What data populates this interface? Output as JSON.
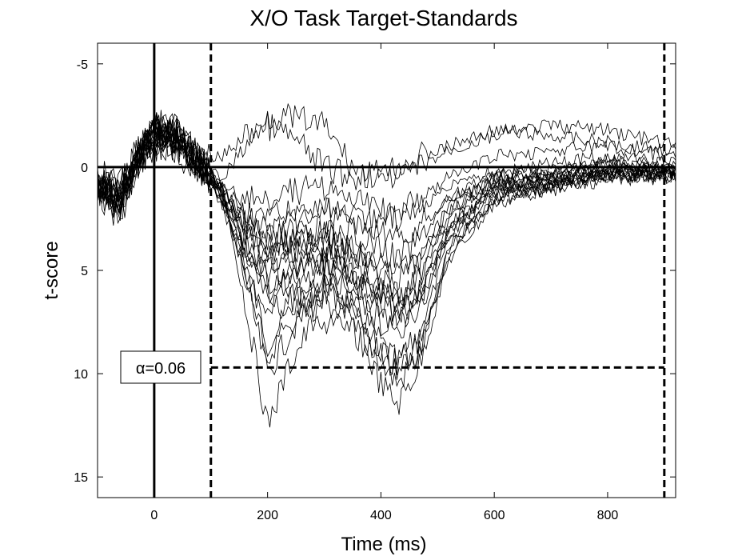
{
  "chart_data": {
    "type": "line",
    "title": "X/O Task Target-Standards",
    "xlabel": "Time (ms)",
    "ylabel": "t-score",
    "xlim": [
      -100,
      920
    ],
    "ylim": [
      -6,
      16
    ],
    "y_reversed": true,
    "xticks": [
      0,
      200,
      400,
      600,
      800
    ],
    "yticks": [
      -5,
      0,
      5,
      10,
      15
    ],
    "xtick_labels": [
      "0",
      "200",
      "400",
      "600",
      "800"
    ],
    "ytick_labels": [
      "-5",
      "0",
      "5",
      "10",
      "15"
    ],
    "grid": false,
    "legend": "none",
    "line_color": "#000000",
    "reference_lines": [
      {
        "orientation": "horizontal",
        "value": 0,
        "style": "solid"
      },
      {
        "orientation": "vertical",
        "value": 0,
        "style": "solid"
      },
      {
        "orientation": "vertical",
        "value": 100,
        "style": "dashed"
      },
      {
        "orientation": "vertical",
        "value": 900,
        "style": "dashed"
      },
      {
        "orientation": "horizontal",
        "value": 9.7,
        "x_from": 100,
        "x_to": 900,
        "style": "dashed"
      }
    ],
    "annotation": {
      "text": "α=0.06",
      "x": -52,
      "y": 9.8
    },
    "series_profile": {
      "x": [
        -100,
        -60,
        -40,
        0,
        40,
        90,
        120,
        160,
        200,
        240,
        300,
        350,
        400,
        430,
        470,
        520,
        600,
        700,
        800,
        920
      ],
      "baseline": [
        1,
        1,
        0,
        -1.5,
        -1.2,
        0,
        1.3,
        3.5,
        5,
        4.6,
        4.5,
        5.2,
        6.2,
        6.5,
        5.5,
        2.5,
        1,
        0.8,
        0.3,
        0.3
      ]
    },
    "series": [
      {
        "values": [
          1.2,
          1.6,
          0.2,
          -1.8,
          -1.5,
          0.2,
          1.6,
          4.5,
          8.5,
          7.0,
          5.5,
          6.5,
          8.5,
          9.5,
          8.0,
          3.5,
          1.5,
          1.0,
          0.5,
          0.4
        ]
      },
      {
        "values": [
          0.8,
          2.5,
          0.5,
          -2.0,
          -1.8,
          0.0,
          1.2,
          5.5,
          10.0,
          8.0,
          6.0,
          7.0,
          9.5,
          10.5,
          9.0,
          4.0,
          1.5,
          0.8,
          0.4,
          0.2
        ]
      },
      {
        "values": [
          1.0,
          1.2,
          -0.2,
          -1.6,
          -1.0,
          0.3,
          1.0,
          6.5,
          12.5,
          9.5,
          6.5,
          7.5,
          10.5,
          11.5,
          9.5,
          4.5,
          1.8,
          1.0,
          0.2,
          0.5
        ]
      },
      {
        "values": [
          0.5,
          0.8,
          0.6,
          -1.4,
          -1.2,
          0.1,
          0.8,
          3.0,
          4.0,
          3.5,
          3.0,
          4.0,
          5.0,
          5.5,
          4.5,
          2.0,
          0.8,
          0.5,
          0.0,
          0.1
        ]
      },
      {
        "values": [
          1.4,
          1.8,
          0.0,
          -2.2,
          -1.6,
          0.4,
          1.5,
          2.5,
          3.0,
          2.8,
          2.0,
          3.0,
          4.0,
          4.5,
          3.5,
          1.5,
          0.5,
          0.3,
          -0.2,
          0.2
        ]
      },
      {
        "values": [
          0.6,
          1.0,
          0.4,
          -1.2,
          -0.8,
          -0.2,
          -0.5,
          -1.5,
          -2.0,
          -1.5,
          0.0,
          0.5,
          0.2,
          0.0,
          -0.5,
          -1.0,
          -1.8,
          -1.5,
          -1.2,
          -0.8
        ]
      },
      {
        "values": [
          1.5,
          1.3,
          -0.4,
          -1.8,
          -1.4,
          0.2,
          0.5,
          -1.0,
          -2.5,
          -2.4,
          -2.0,
          0.0,
          0.5,
          0.5,
          0.0,
          -0.8,
          -1.5,
          -2.0,
          -1.8,
          -1.0
        ]
      },
      {
        "values": [
          0.9,
          1.1,
          0.3,
          -1.7,
          -1.3,
          0.0,
          1.4,
          4.0,
          6.0,
          5.5,
          7.5,
          8.0,
          9.0,
          9.5,
          8.5,
          4.0,
          1.0,
          0.6,
          0.2,
          0.3
        ]
      },
      {
        "values": [
          1.1,
          1.9,
          0.1,
          -1.5,
          -1.1,
          0.3,
          1.8,
          5.0,
          7.0,
          6.5,
          5.0,
          5.5,
          6.5,
          7.0,
          6.0,
          3.0,
          1.2,
          0.9,
          0.5,
          0.4
        ]
      },
      {
        "values": [
          0.7,
          1.4,
          0.5,
          -2.1,
          -1.7,
          0.1,
          1.1,
          2.0,
          2.5,
          2.2,
          2.0,
          2.5,
          3.0,
          3.5,
          2.8,
          1.5,
          0.4,
          0.2,
          0.0,
          0.1
        ]
      },
      {
        "values": [
          1.3,
          2.2,
          0.0,
          -1.9,
          -1.4,
          0.2,
          1.3,
          3.5,
          5.5,
          5.0,
          4.0,
          3.0,
          2.5,
          2.0,
          1.5,
          0.5,
          -0.5,
          -0.8,
          -1.0,
          -0.5
        ]
      },
      {
        "values": [
          0.8,
          1.5,
          0.2,
          -1.3,
          -0.9,
          0.4,
          1.6,
          4.8,
          9.0,
          7.5,
          6.0,
          7.0,
          9.0,
          10.0,
          8.8,
          4.2,
          1.4,
          1.1,
          0.6,
          0.5
        ]
      },
      {
        "values": [
          1.0,
          1.7,
          0.4,
          -1.6,
          -1.5,
          0.0,
          0.9,
          3.2,
          4.5,
          4.0,
          4.2,
          5.0,
          6.0,
          6.5,
          5.0,
          2.2,
          0.6,
          0.3,
          -0.3,
          0.0
        ]
      },
      {
        "values": [
          1.2,
          1.0,
          -0.1,
          -2.0,
          -1.2,
          0.1,
          1.2,
          3.8,
          5.0,
          4.6,
          4.8,
          5.5,
          7.0,
          7.5,
          6.5,
          3.0,
          1.0,
          0.7,
          0.3,
          0.2
        ]
      },
      {
        "values": [
          0.9,
          2.0,
          0.3,
          -1.4,
          -1.3,
          0.2,
          1.5,
          2.8,
          3.5,
          3.2,
          3.5,
          4.5,
          6.0,
          6.8,
          5.8,
          2.8,
          0.9,
          0.6,
          0.1,
          0.3
        ]
      },
      {
        "values": [
          1.1,
          1.3,
          0.1,
          -1.8,
          -1.6,
          0.3,
          1.7,
          4.2,
          6.5,
          6.0,
          5.5,
          6.0,
          7.5,
          8.0,
          7.0,
          3.2,
          1.3,
          0.8,
          0.4,
          0.4
        ]
      },
      {
        "values": [
          0.6,
          1.6,
          0.5,
          -1.5,
          -1.0,
          0.0,
          1.0,
          1.5,
          1.5,
          1.2,
          1.0,
          1.5,
          2.0,
          2.5,
          2.0,
          1.0,
          0.2,
          -0.2,
          -0.5,
          -0.2
        ]
      },
      {
        "values": [
          1.4,
          1.2,
          -0.3,
          -1.7,
          -1.4,
          0.1,
          1.4,
          3.0,
          4.2,
          4.0,
          3.8,
          4.2,
          5.5,
          6.0,
          5.2,
          2.5,
          0.8,
          0.5,
          0.1,
          0.2
        ]
      },
      {
        "values": [
          0.7,
          1.8,
          0.2,
          -1.9,
          -1.5,
          0.2,
          1.3,
          3.6,
          5.2,
          4.8,
          4.5,
          5.2,
          6.8,
          7.2,
          6.2,
          2.9,
          1.1,
          0.7,
          0.3,
          0.3
        ]
      },
      {
        "values": [
          1.0,
          1.5,
          0.0,
          -1.6,
          -1.2,
          0.0,
          1.1,
          2.6,
          3.8,
          3.5,
          3.2,
          3.8,
          4.8,
          5.2,
          4.2,
          1.9,
          0.6,
          0.4,
          -0.1,
          0.1
        ]
      }
    ]
  }
}
